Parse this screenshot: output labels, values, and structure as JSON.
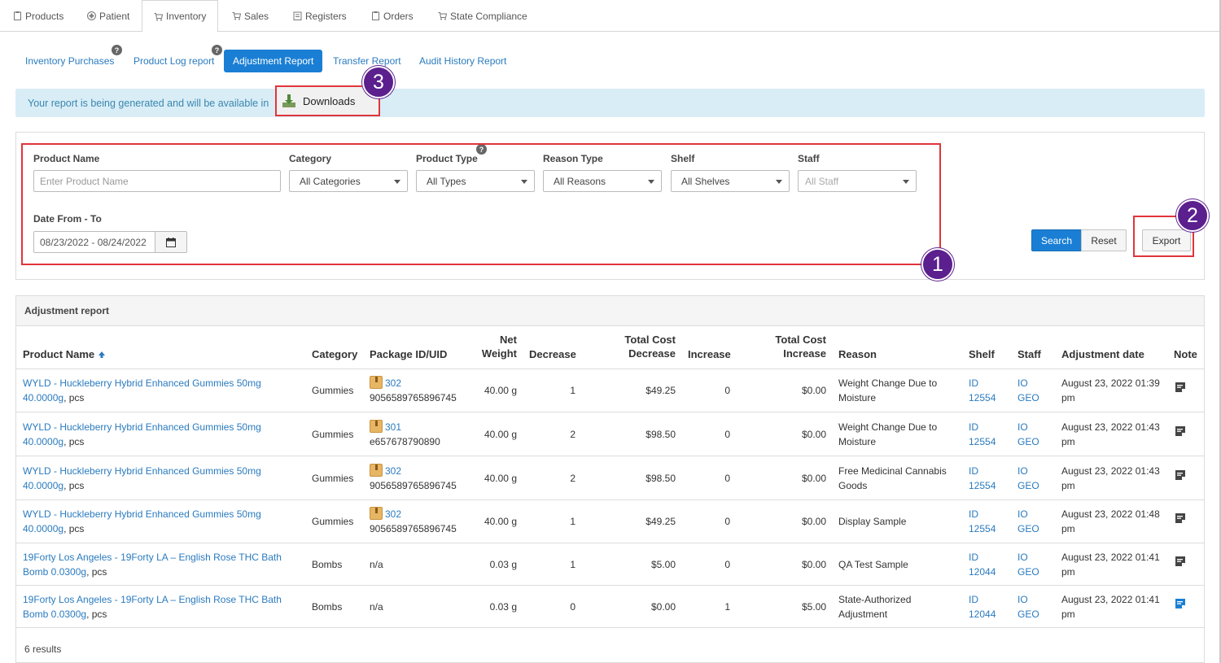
{
  "nav": {
    "tabs": [
      {
        "label": "Products"
      },
      {
        "label": "Patient"
      },
      {
        "label": "Inventory"
      },
      {
        "label": "Sales"
      },
      {
        "label": "Registers"
      },
      {
        "label": "Orders"
      },
      {
        "label": "State Compliance"
      }
    ]
  },
  "subnav": {
    "items": [
      {
        "label": "Inventory Purchases"
      },
      {
        "label": "Product Log report"
      },
      {
        "label": "Adjustment Report"
      },
      {
        "label": "Transfer Report"
      },
      {
        "label": "Audit History Report"
      }
    ],
    "help": "?"
  },
  "info": {
    "message": "Your report is being generated and will be available in",
    "downloads_label": "Downloads"
  },
  "callouts": {
    "one": "1",
    "two": "2",
    "three": "3"
  },
  "filters": {
    "product_name_label": "Product Name",
    "product_name_placeholder": "Enter Product Name",
    "category_label": "Category",
    "category_value": "All Categories",
    "product_type_label": "Product Type",
    "product_type_value": "All Types",
    "reason_type_label": "Reason Type",
    "reason_type_value": "All Reasons",
    "shelf_label": "Shelf",
    "shelf_value": "All Shelves",
    "staff_label": "Staff",
    "staff_value": "All Staff",
    "date_label": "Date From - To",
    "date_value": "08/23/2022 - 08/24/2022",
    "search_label": "Search",
    "reset_label": "Reset",
    "export_label": "Export"
  },
  "report": {
    "title": "Adjustment report",
    "headers": {
      "product_name": "Product Name",
      "category": "Category",
      "package": "Package ID/UID",
      "net_weight_1": "Net",
      "net_weight_2": "Weight",
      "decrease": "Decrease",
      "tcd_1": "Total Cost",
      "tcd_2": "Decrease",
      "increase": "Increase",
      "tci_1": "Total Cost",
      "tci_2": "Increase",
      "reason": "Reason",
      "shelf": "Shelf",
      "staff": "Staff",
      "date": "Adjustment date",
      "note": "Note"
    },
    "rows": [
      {
        "name1": "WYLD - Huckleberry Hybrid Enhanced Gummies 50mg",
        "name2": "40.0000g",
        "unit": ", pcs",
        "category": "Gummies",
        "pkg_id": "302",
        "uid": "9056589765896745",
        "net_weight": "40.00 g",
        "decrease": "1",
        "tcd": "$49.25",
        "increase": "0",
        "tci": "$0.00",
        "reason1": "Weight Change Due to",
        "reason2": "Moisture",
        "shelf1": "ID",
        "shelf2": "12554",
        "staff1": "IO",
        "staff2": "GEO",
        "date1": "August 23, 2022 01:39",
        "date2": "pm",
        "note_color": "#444"
      },
      {
        "name1": "WYLD - Huckleberry Hybrid Enhanced Gummies 50mg",
        "name2": "40.0000g",
        "unit": ", pcs",
        "category": "Gummies",
        "pkg_id": "301",
        "uid": "e657678790890",
        "net_weight": "40.00 g",
        "decrease": "2",
        "tcd": "$98.50",
        "increase": "0",
        "tci": "$0.00",
        "reason1": "Weight Change Due to",
        "reason2": "Moisture",
        "shelf1": "ID",
        "shelf2": "12554",
        "staff1": "IO",
        "staff2": "GEO",
        "date1": "August 23, 2022 01:43",
        "date2": "pm",
        "note_color": "#444"
      },
      {
        "name1": "WYLD - Huckleberry Hybrid Enhanced Gummies 50mg",
        "name2": "40.0000g",
        "unit": ", pcs",
        "category": "Gummies",
        "pkg_id": "302",
        "uid": "9056589765896745",
        "net_weight": "40.00 g",
        "decrease": "2",
        "tcd": "$98.50",
        "increase": "0",
        "tci": "$0.00",
        "reason1": "Free Medicinal Cannabis",
        "reason2": "Goods",
        "shelf1": "ID",
        "shelf2": "12554",
        "staff1": "IO",
        "staff2": "GEO",
        "date1": "August 23, 2022 01:43",
        "date2": "pm",
        "note_color": "#444"
      },
      {
        "name1": "WYLD - Huckleberry Hybrid Enhanced Gummies 50mg",
        "name2": "40.0000g",
        "unit": ", pcs",
        "category": "Gummies",
        "pkg_id": "302",
        "uid": "9056589765896745",
        "net_weight": "40.00 g",
        "decrease": "1",
        "tcd": "$49.25",
        "increase": "0",
        "tci": "$0.00",
        "reason1": "Display Sample",
        "reason2": "",
        "shelf1": "ID",
        "shelf2": "12554",
        "staff1": "IO",
        "staff2": "GEO",
        "date1": "August 23, 2022 01:48",
        "date2": "pm",
        "note_color": "#444"
      },
      {
        "name1": "19Forty Los Angeles - 19Forty LA – English Rose THC Bath",
        "name2": "Bomb 0.0300g",
        "unit": ", pcs",
        "category": "Bombs",
        "pkg_id": "",
        "uid": "n/a",
        "net_weight": "0.03 g",
        "decrease": "1",
        "tcd": "$5.00",
        "increase": "0",
        "tci": "$0.00",
        "reason1": "QA Test Sample",
        "reason2": "",
        "shelf1": "ID",
        "shelf2": "12044",
        "staff1": "IO",
        "staff2": "GEO",
        "date1": "August 23, 2022 01:41",
        "date2": "pm",
        "note_color": "#444"
      },
      {
        "name1": "19Forty Los Angeles - 19Forty LA – English Rose THC Bath",
        "name2": "Bomb 0.0300g",
        "unit": ", pcs",
        "category": "Bombs",
        "pkg_id": "",
        "uid": "n/a",
        "net_weight": "0.03 g",
        "decrease": "0",
        "tcd": "$0.00",
        "increase": "1",
        "tci": "$5.00",
        "reason1": "State-Authorized",
        "reason2": "Adjustment",
        "shelf1": "ID",
        "shelf2": "12044",
        "staff1": "IO",
        "staff2": "GEO",
        "date1": "August 23, 2022 01:41",
        "date2": "pm",
        "note_color": "#1a7fd4"
      }
    ],
    "results": "6 results"
  },
  "colors": {
    "accent": "#1a7fd4",
    "link": "#2a7bbf",
    "highlight": "#e0353b",
    "callout": "#5b1f8e",
    "info_bg": "#d9edf7"
  }
}
